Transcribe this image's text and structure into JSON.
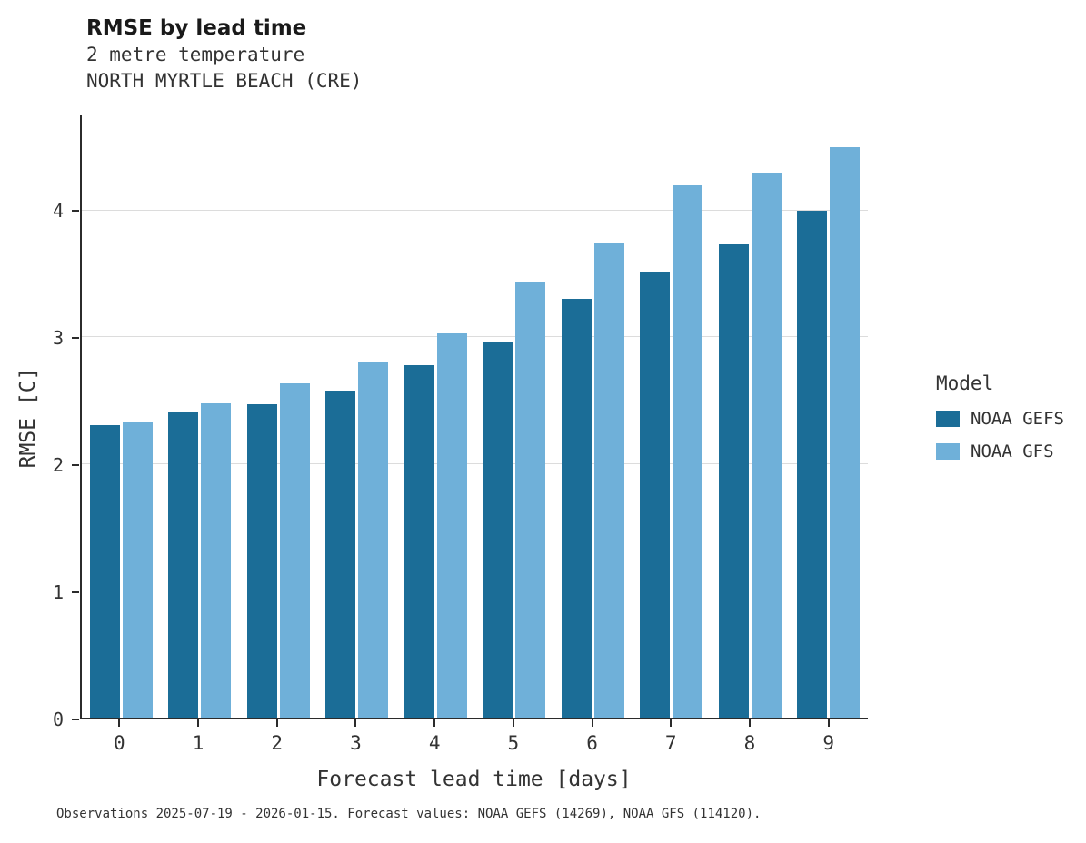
{
  "title": "RMSE by lead time",
  "subtitle_variable": "2 metre temperature",
  "subtitle_station": "NORTH MYRTLE BEACH (CRE)",
  "caption": "Observations 2025-07-19 - 2026-01-15. Forecast values: NOAA GEFS (14269), NOAA GFS (114120).",
  "legend": {
    "title": "Model"
  },
  "colors": {
    "noaa_gefs": "#1b6d97",
    "noaa_gfs": "#6fb0d9",
    "axis": "#2b2b2b",
    "grid": "#dcdcdc",
    "text": "#333333"
  },
  "chart_data": {
    "type": "bar",
    "title": "RMSE by lead time",
    "subtitle": "2 metre temperature — NORTH MYRTLE BEACH (CRE)",
    "xlabel": "Forecast lead time [days]",
    "ylabel": "RMSE [C]",
    "categories": [
      "0",
      "1",
      "2",
      "3",
      "4",
      "5",
      "6",
      "7",
      "8",
      "9"
    ],
    "series": [
      {
        "name": "NOAA GEFS",
        "color": "#1b6d97",
        "values": [
          2.31,
          2.41,
          2.47,
          2.58,
          2.78,
          2.96,
          3.3,
          3.52,
          3.73,
          4.0
        ]
      },
      {
        "name": "NOAA GFS",
        "color": "#6fb0d9",
        "values": [
          2.33,
          2.48,
          2.64,
          2.8,
          3.03,
          3.44,
          3.74,
          4.2,
          4.3,
          4.5
        ]
      }
    ],
    "ylim": [
      0,
      4.75
    ],
    "yticks": [
      0,
      1,
      2,
      3,
      4
    ],
    "grid": true,
    "legend_position": "right"
  }
}
